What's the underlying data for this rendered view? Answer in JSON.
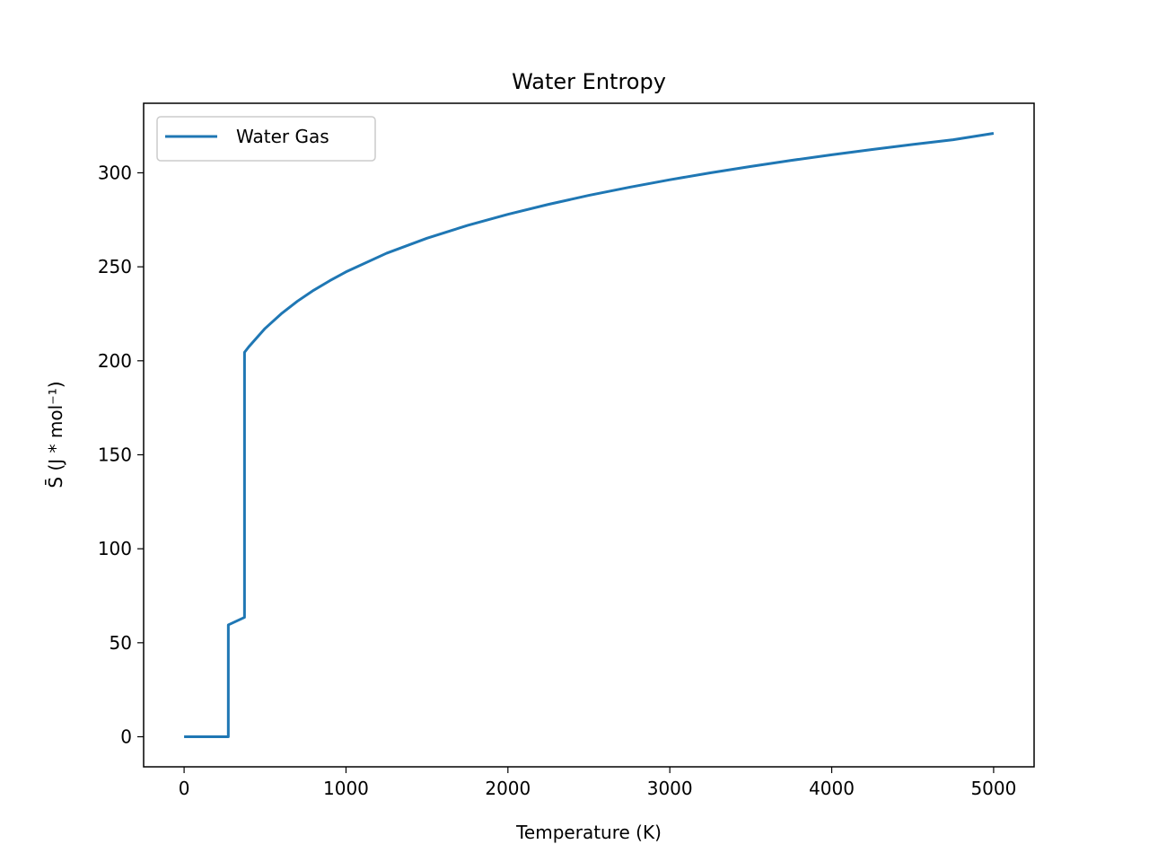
{
  "chart_data": {
    "type": "line",
    "title": "Water Entropy",
    "xlabel": "Temperature (K)",
    "ylabel": "S̄ (J * mol⁻¹)",
    "xlim": [
      -250,
      5250
    ],
    "ylim": [
      -16,
      337
    ],
    "xticks": [
      0,
      1000,
      2000,
      3000,
      4000,
      5000
    ],
    "yticks": [
      0,
      50,
      100,
      150,
      200,
      250,
      300
    ],
    "grid": false,
    "legend_position": "upper left",
    "series": [
      {
        "name": "Water Gas",
        "color": "#1f77b4",
        "x": [
          0,
          273,
          273.15,
          373,
          373.15,
          400,
          500,
          600,
          700,
          800,
          900,
          1000,
          1250,
          1500,
          1750,
          2000,
          2250,
          2500,
          2750,
          3000,
          3250,
          3500,
          3750,
          4000,
          4250,
          4500,
          4750,
          5000
        ],
        "y": [
          0,
          0,
          59.5,
          63.5,
          204.5,
          207.5,
          217.2,
          225.0,
          231.7,
          237.5,
          242.6,
          247.3,
          257.2,
          265.2,
          272.0,
          277.9,
          283.2,
          288.0,
          292.3,
          296.3,
          300.0,
          303.4,
          306.6,
          309.6,
          312.4,
          315.1,
          317.6,
          321.0
        ]
      }
    ]
  }
}
